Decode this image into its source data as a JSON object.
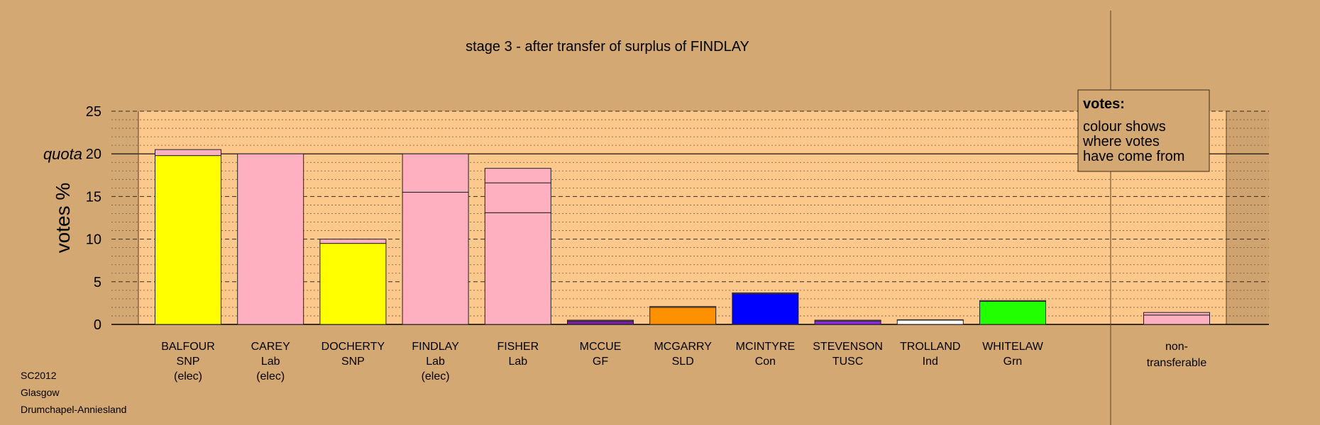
{
  "chart_data": {
    "type": "bar",
    "stacked": true,
    "title": "stage 3 - after transfer of surplus of FINDLAY",
    "ylabel": "votes %",
    "ylim": [
      0,
      25
    ],
    "yticks": [
      "0",
      "5",
      "10",
      "15",
      "20",
      "25"
    ],
    "quota_label": "quota",
    "quota_value": 20,
    "grid": true,
    "legend_position": "top-right",
    "legend": {
      "title": "votes:",
      "lines": [
        "colour shows",
        "where votes",
        "have come from"
      ]
    },
    "colors": {
      "background": "#d4a873",
      "plot_area": "#fdc88b",
      "SNP": "#ffff00",
      "Lab": "#ffb0c0",
      "GF": "#7b1fa2",
      "SLD": "#ff9000",
      "Con": "#0000ff",
      "TUSC": "#8a2be2",
      "Ind": "#ffffff",
      "Grn": "#22ff00"
    },
    "candidates": [
      {
        "name": "BALFOUR",
        "party": "SNP",
        "note": "(elec)",
        "segments": [
          {
            "from": "SNP",
            "value": 19.8
          },
          {
            "from": "Lab",
            "value": 0.7
          }
        ]
      },
      {
        "name": "CAREY",
        "party": "Lab",
        "note": "(elec)",
        "segments": [
          {
            "from": "Lab",
            "value": 20.0
          }
        ]
      },
      {
        "name": "DOCHERTY",
        "party": "SNP",
        "note": "",
        "segments": [
          {
            "from": "SNP",
            "value": 9.5
          },
          {
            "from": "Lab",
            "value": 0.5
          }
        ]
      },
      {
        "name": "FINDLAY",
        "party": "Lab",
        "note": "(elec)",
        "segments": [
          {
            "from": "Lab",
            "value": 15.5
          },
          {
            "from": "Lab",
            "value": 4.5
          }
        ]
      },
      {
        "name": "FISHER",
        "party": "Lab",
        "note": "",
        "segments": [
          {
            "from": "Lab",
            "value": 13.1
          },
          {
            "from": "Lab",
            "value": 3.5
          },
          {
            "from": "Lab",
            "value": 1.7
          }
        ]
      },
      {
        "name": "MCCUE",
        "party": "GF",
        "note": "",
        "segments": [
          {
            "from": "GF",
            "value": 0.4
          },
          {
            "from": "Lab",
            "value": 0.1
          }
        ]
      },
      {
        "name": "MCGARRY",
        "party": "SLD",
        "note": "",
        "segments": [
          {
            "from": "SLD",
            "value": 2.0
          },
          {
            "from": "Lab",
            "value": 0.1
          }
        ]
      },
      {
        "name": "MCINTYRE",
        "party": "Con",
        "note": "",
        "segments": [
          {
            "from": "Con",
            "value": 3.6
          },
          {
            "from": "Lab",
            "value": 0.1
          }
        ]
      },
      {
        "name": "STEVENSON",
        "party": "TUSC",
        "note": "",
        "segments": [
          {
            "from": "TUSC",
            "value": 0.4
          },
          {
            "from": "Lab",
            "value": 0.1
          }
        ]
      },
      {
        "name": "TROLLAND",
        "party": "Ind",
        "note": "",
        "segments": [
          {
            "from": "Ind",
            "value": 0.5
          },
          {
            "from": "Lab",
            "value": 0.05
          }
        ]
      },
      {
        "name": "WHITELAW",
        "party": "Grn",
        "note": "",
        "segments": [
          {
            "from": "Grn",
            "value": 2.7
          },
          {
            "from": "Lab",
            "value": 0.1
          }
        ]
      }
    ],
    "nontransferable": {
      "label_lines": [
        "non-",
        "transferable"
      ],
      "segments": [
        {
          "from": "Lab",
          "value": 1.1
        },
        {
          "from": "Lab",
          "value": 0.3
        }
      ]
    }
  },
  "footer": {
    "election": "SC2012",
    "council": "Glasgow",
    "ward": "Drumchapel-Anniesland"
  }
}
